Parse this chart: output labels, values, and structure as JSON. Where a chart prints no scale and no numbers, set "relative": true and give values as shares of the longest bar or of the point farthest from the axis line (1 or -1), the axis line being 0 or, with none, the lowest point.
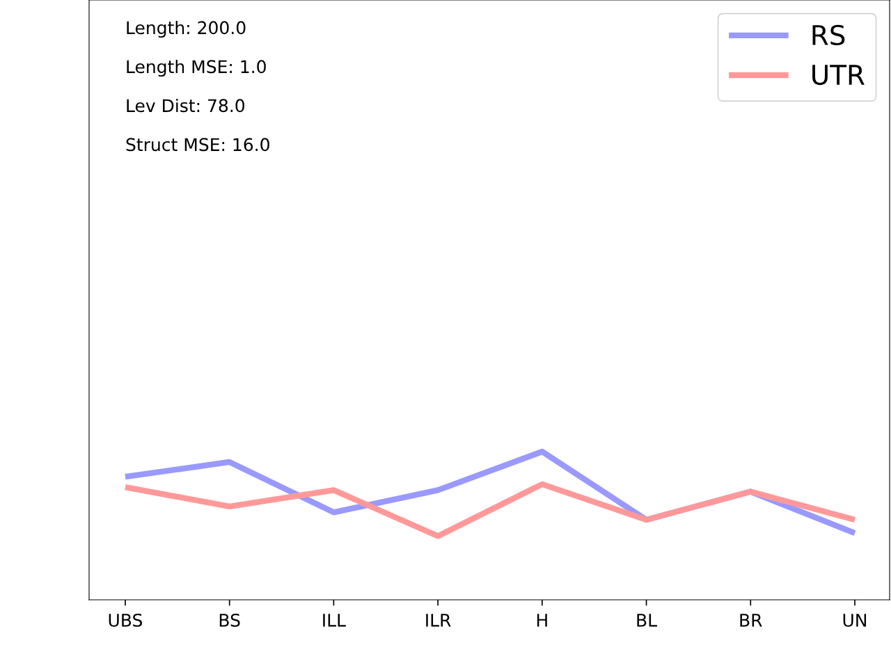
{
  "chart_data": {
    "type": "line",
    "relative": true,
    "categories": [
      "UBS",
      "BS",
      "ILL",
      "ILR",
      "H",
      "BL",
      "BR",
      "UN"
    ],
    "series": [
      {
        "name": "RS",
        "color": "#9999ff",
        "values": [
          0.83,
          0.93,
          0.59,
          0.74,
          1.0,
          0.54,
          0.73,
          0.45
        ]
      },
      {
        "name": "UTR",
        "color": "#ff9999",
        "values": [
          0.76,
          0.63,
          0.74,
          0.43,
          0.78,
          0.54,
          0.73,
          0.54
        ]
      }
    ],
    "annotations": [
      "Length: 200.0",
      "Length MSE: 1.0",
      "Lev Dist: 78.0",
      "Struct MSE: 16.0"
    ],
    "legend": "top right",
    "grid": false,
    "marker": "none",
    "line_style": "solid",
    "tick_labels": "x"
  }
}
